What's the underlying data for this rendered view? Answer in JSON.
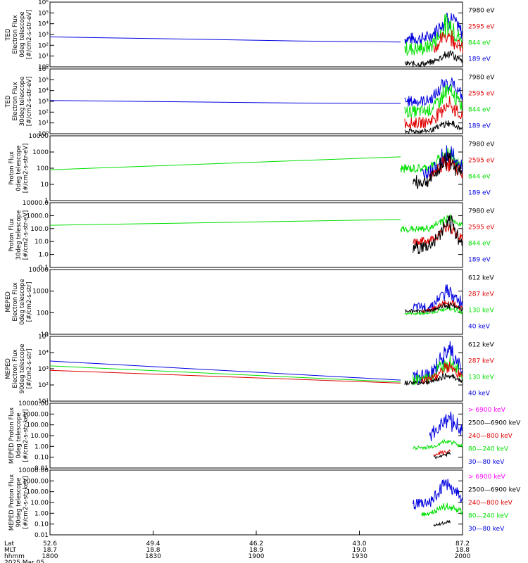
{
  "colors": {
    "black": "#000000",
    "red": "#e00000",
    "green": "#00e000",
    "blue": "#0000e0",
    "magenta": "#ff00ff"
  },
  "chart_data": [
    {
      "type": "line",
      "scale": "log",
      "ylim": [
        1,
        1000000
      ],
      "ylabel": [
        "TED",
        "Electron Flux",
        "0deg telescope",
        "[#/cm2-s-str-eV]"
      ],
      "yticks": [
        {
          "v": 1,
          "t": "10⁰"
        },
        {
          "v": 10,
          "t": "10¹"
        },
        {
          "v": 100,
          "t": "10²"
        },
        {
          "v": 1000,
          "t": "10³"
        },
        {
          "v": 10000,
          "t": "10⁴"
        },
        {
          "v": 100000,
          "t": "10⁵"
        },
        {
          "v": 1000000,
          "t": "10⁶"
        }
      ],
      "legend": [
        {
          "label": "7980 eV",
          "color": "black"
        },
        {
          "label": "2595 eV",
          "color": "red"
        },
        {
          "label": "844 eV",
          "color": "green"
        },
        {
          "label": "189 eV",
          "color": "blue"
        }
      ],
      "series": [
        {
          "color": "blue",
          "kind": "line",
          "x": [
            0,
            0.6,
            0.85
          ],
          "y": [
            600,
            250,
            200
          ]
        },
        {
          "color": "blue",
          "kind": "noise",
          "range": [
            0.86,
            1
          ],
          "lo": 100,
          "hi": 300000
        },
        {
          "color": "green",
          "kind": "noise",
          "range": [
            0.86,
            1
          ],
          "lo": 10,
          "hi": 80000
        },
        {
          "color": "red",
          "kind": "noise",
          "range": [
            0.93,
            1
          ],
          "lo": 5,
          "hi": 5000
        },
        {
          "color": "black",
          "kind": "noise",
          "range": [
            0.86,
            1
          ],
          "lo": 1,
          "hi": 40
        }
      ]
    },
    {
      "type": "line",
      "scale": "log",
      "ylim": [
        1,
        1000000
      ],
      "ylabel": [
        "TED",
        "Electron Flux",
        "30deg telescope",
        "[#/cm2-s-str-eV]"
      ],
      "yticks": [
        {
          "v": 1,
          "t": "10⁰"
        },
        {
          "v": 10,
          "t": "10¹"
        },
        {
          "v": 100,
          "t": "10²"
        },
        {
          "v": 1000,
          "t": "10³"
        },
        {
          "v": 10000,
          "t": "10⁴"
        },
        {
          "v": 100000,
          "t": "10⁵"
        },
        {
          "v": 1000000,
          "t": "10⁶"
        }
      ],
      "legend": [
        {
          "label": "7980 eV",
          "color": "black"
        },
        {
          "label": "2595 eV",
          "color": "red"
        },
        {
          "label": "844 eV",
          "color": "green"
        },
        {
          "label": "189 eV",
          "color": "blue"
        }
      ],
      "series": [
        {
          "color": "blue",
          "kind": "line",
          "x": [
            0,
            0.6,
            0.85
          ],
          "y": [
            1200,
            700,
            650
          ]
        },
        {
          "color": "blue",
          "kind": "noise",
          "range": [
            0.86,
            1
          ],
          "lo": 300,
          "hi": 300000
        },
        {
          "color": "green",
          "kind": "noise",
          "range": [
            0.86,
            1
          ],
          "lo": 30,
          "hi": 50000
        },
        {
          "color": "red",
          "kind": "noise",
          "range": [
            0.86,
            1
          ],
          "lo": 3,
          "hi": 3000
        },
        {
          "color": "black",
          "kind": "noise",
          "range": [
            0.86,
            1
          ],
          "lo": 1,
          "hi": 20
        }
      ]
    },
    {
      "type": "line",
      "scale": "log",
      "ylim": [
        1,
        10000
      ],
      "ylabel": [
        "Proton Flux",
        "0deg telescope",
        "[#/cm2-s-str-eV]"
      ],
      "yticks": [
        {
          "v": 1,
          "t": "1"
        },
        {
          "v": 10,
          "t": "10"
        },
        {
          "v": 100,
          "t": "100"
        },
        {
          "v": 1000,
          "t": "1000"
        },
        {
          "v": 10000,
          "t": "10000"
        }
      ],
      "legend": [
        {
          "label": "7980 eV",
          "color": "black"
        },
        {
          "label": "2595 eV",
          "color": "red"
        },
        {
          "label": "844 eV",
          "color": "green"
        },
        {
          "label": "189 eV",
          "color": "blue"
        }
      ],
      "series": [
        {
          "color": "green",
          "kind": "line",
          "x": [
            0,
            0.85
          ],
          "y": [
            80,
            500
          ]
        },
        {
          "color": "green",
          "kind": "noise",
          "range": [
            0.85,
            1
          ],
          "lo": 50,
          "hi": 2000
        },
        {
          "color": "blue",
          "kind": "noise",
          "range": [
            0.9,
            1
          ],
          "lo": 20,
          "hi": 3000
        },
        {
          "color": "red",
          "kind": "noise",
          "range": [
            0.92,
            1
          ],
          "lo": 10,
          "hi": 800
        },
        {
          "color": "black",
          "kind": "noise",
          "range": [
            0.88,
            1
          ],
          "lo": 5,
          "hi": 1500
        }
      ]
    },
    {
      "type": "line",
      "scale": "log",
      "ylim": [
        0.1,
        10000
      ],
      "ylabel": [
        "Proton Flux",
        "30deg telescope",
        "[#/cm2-s-str-eV]"
      ],
      "yticks": [
        {
          "v": 0.1,
          "t": "0.1"
        },
        {
          "v": 1,
          "t": "1.0"
        },
        {
          "v": 10,
          "t": "10.0"
        },
        {
          "v": 100,
          "t": "100.0"
        },
        {
          "v": 1000,
          "t": "1000.0"
        },
        {
          "v": 10000,
          "t": "10000.0"
        }
      ],
      "legend": [
        {
          "label": "7980 eV",
          "color": "black"
        },
        {
          "label": "2595 eV",
          "color": "red"
        },
        {
          "label": "844 eV",
          "color": "green"
        },
        {
          "label": "189 eV",
          "color": "blue"
        }
      ],
      "series": [
        {
          "color": "green",
          "kind": "line",
          "x": [
            0,
            0.85
          ],
          "y": [
            180,
            500
          ]
        },
        {
          "color": "green",
          "kind": "noise",
          "range": [
            0.85,
            1
          ],
          "lo": 50,
          "hi": 1500
        },
        {
          "color": "red",
          "kind": "noise",
          "range": [
            0.88,
            1
          ],
          "lo": 5,
          "hi": 300
        },
        {
          "color": "black",
          "kind": "noise",
          "range": [
            0.88,
            1
          ],
          "lo": 1,
          "hi": 1000
        }
      ]
    },
    {
      "type": "line",
      "scale": "log",
      "ylim": [
        10,
        10000
      ],
      "ylabel": [
        "MEPED",
        "Electron Flux",
        "0deg telescope",
        "[#/cm2-s-str]"
      ],
      "yticks": [
        {
          "v": 10,
          "t": "10"
        },
        {
          "v": 100,
          "t": "100"
        },
        {
          "v": 1000,
          "t": "1000"
        },
        {
          "v": 10000,
          "t": "10000"
        }
      ],
      "legend": [
        {
          "label": "612 keV",
          "color": "black"
        },
        {
          "label": "287 keV",
          "color": "red"
        },
        {
          "label": "130 keV",
          "color": "green"
        },
        {
          "label": "40 keV",
          "color": "blue"
        }
      ],
      "series": [
        {
          "color": "green",
          "kind": "noise",
          "range": [
            0.86,
            1
          ],
          "lo": 80,
          "hi": 200
        },
        {
          "color": "blue",
          "kind": "noise",
          "range": [
            0.88,
            1
          ],
          "lo": 100,
          "hi": 2000
        },
        {
          "color": "red",
          "kind": "noise",
          "range": [
            0.9,
            1
          ],
          "lo": 100,
          "hi": 400
        },
        {
          "color": "black",
          "kind": "noise",
          "range": [
            0.86,
            1
          ],
          "lo": 100,
          "hi": 300
        }
      ]
    },
    {
      "type": "line",
      "scale": "log",
      "ylim": [
        10,
        100000
      ],
      "ylabel": [
        "MEPED",
        "Electron Flux",
        "90deg telescope",
        "[#/cm2-s-str]"
      ],
      "yticks": [
        {
          "v": 10,
          "t": "10¹"
        },
        {
          "v": 100,
          "t": "10²"
        },
        {
          "v": 1000,
          "t": "10³"
        },
        {
          "v": 10000,
          "t": "10⁴"
        },
        {
          "v": 100000,
          "t": "10⁵"
        }
      ],
      "legend": [
        {
          "label": "612 keV",
          "color": "black"
        },
        {
          "label": "287 keV",
          "color": "red"
        },
        {
          "label": "130 keV",
          "color": "green"
        },
        {
          "label": "40 keV",
          "color": "blue"
        }
      ],
      "series": [
        {
          "color": "blue",
          "kind": "line",
          "x": [
            0,
            0.85
          ],
          "y": [
            3000,
            200
          ]
        },
        {
          "color": "green",
          "kind": "line",
          "x": [
            0,
            0.85
          ],
          "y": [
            1500,
            150
          ]
        },
        {
          "color": "red",
          "kind": "line",
          "x": [
            0,
            0.85
          ],
          "y": [
            800,
            130
          ]
        },
        {
          "color": "blue",
          "kind": "noise",
          "range": [
            0.88,
            1
          ],
          "lo": 100,
          "hi": 50000
        },
        {
          "color": "green",
          "kind": "noise",
          "range": [
            0.88,
            1
          ],
          "lo": 100,
          "hi": 10000
        },
        {
          "color": "red",
          "kind": "noise",
          "range": [
            0.9,
            1
          ],
          "lo": 100,
          "hi": 3000
        },
        {
          "color": "black",
          "kind": "noise",
          "range": [
            0.86,
            1
          ],
          "lo": 100,
          "hi": 600
        }
      ]
    },
    {
      "type": "line",
      "scale": "log",
      "ylim": [
        0.01,
        10000
      ],
      "ylabel": [
        "MEPED Proton Flux",
        "0deg telescope",
        "[#/cm2-s-str-keV]"
      ],
      "yticks": [
        {
          "v": 0.01,
          "t": "0.01"
        },
        {
          "v": 0.1,
          "t": "0.10"
        },
        {
          "v": 1,
          "t": "1.00"
        },
        {
          "v": 10,
          "t": "10.00"
        },
        {
          "v": 100,
          "t": "100.00"
        },
        {
          "v": 1000,
          "t": "1000.00"
        },
        {
          "v": 10000,
          "t": "10000.00"
        }
      ],
      "legend": [
        {
          "label": "> 6900 keV",
          "color": "magenta"
        },
        {
          "label": "2500—6900 keV",
          "color": "black"
        },
        {
          "label": "240—800 keV",
          "color": "red"
        },
        {
          "label": "80—240 keV",
          "color": "green"
        },
        {
          "label": "30—80 keV",
          "color": "blue"
        }
      ],
      "series": [
        {
          "color": "blue",
          "kind": "noise",
          "range": [
            0.92,
            1
          ],
          "lo": 1,
          "hi": 5000
        },
        {
          "color": "green",
          "kind": "noise",
          "range": [
            0.88,
            1
          ],
          "lo": 0.5,
          "hi": 5
        },
        {
          "color": "red",
          "kind": "noise",
          "range": [
            0.93,
            0.97
          ],
          "lo": 0.1,
          "hi": 0.5
        },
        {
          "color": "black",
          "kind": "noise",
          "range": [
            0.93,
            0.97
          ],
          "lo": 0.05,
          "hi": 0.3
        }
      ]
    },
    {
      "type": "line",
      "scale": "log",
      "ylim": [
        0.01,
        10000
      ],
      "ylabel": [
        "MEPED Proton Flux",
        "90deg telescope",
        "[#/cm2-s-str-keV]"
      ],
      "yticks": [
        {
          "v": 0.01,
          "t": "0.01"
        },
        {
          "v": 0.1,
          "t": "0.10"
        },
        {
          "v": 1,
          "t": "1.00"
        },
        {
          "v": 10,
          "t": "10.00"
        },
        {
          "v": 100,
          "t": "100.00"
        },
        {
          "v": 1000,
          "t": "1000.00"
        },
        {
          "v": 10000,
          "t": "10000.00"
        }
      ],
      "legend": [
        {
          "label": "> 6900 keV",
          "color": "magenta"
        },
        {
          "label": "2500—6900 keV",
          "color": "black"
        },
        {
          "label": "240—800 keV",
          "color": "red"
        },
        {
          "label": "80—240 keV",
          "color": "green"
        },
        {
          "label": "30—80 keV",
          "color": "blue"
        }
      ],
      "series": [
        {
          "color": "blue",
          "kind": "noise",
          "range": [
            0.88,
            1
          ],
          "lo": 2,
          "hi": 3000
        },
        {
          "color": "green",
          "kind": "noise",
          "range": [
            0.9,
            1
          ],
          "lo": 0.5,
          "hi": 10
        },
        {
          "color": "black",
          "kind": "noise",
          "range": [
            0.93,
            0.97
          ],
          "lo": 0.05,
          "hi": 0.2
        }
      ]
    }
  ],
  "footer": {
    "row_labels": [
      "Lat",
      "MLT",
      "hhmm"
    ],
    "date": "2025 Mar 05",
    "columns": [
      {
        "lat": "52.6",
        "mlt": "18.7",
        "hhmm": "1800"
      },
      {
        "lat": "49.4",
        "mlt": "18.8",
        "hhmm": "1830"
      },
      {
        "lat": "46.2",
        "mlt": "18.9",
        "hhmm": "1900"
      },
      {
        "lat": "43.0",
        "mlt": "19.0",
        "hhmm": "1930"
      },
      {
        "lat": "87.2",
        "mlt": "18.8",
        "hhmm": "2000"
      }
    ]
  }
}
